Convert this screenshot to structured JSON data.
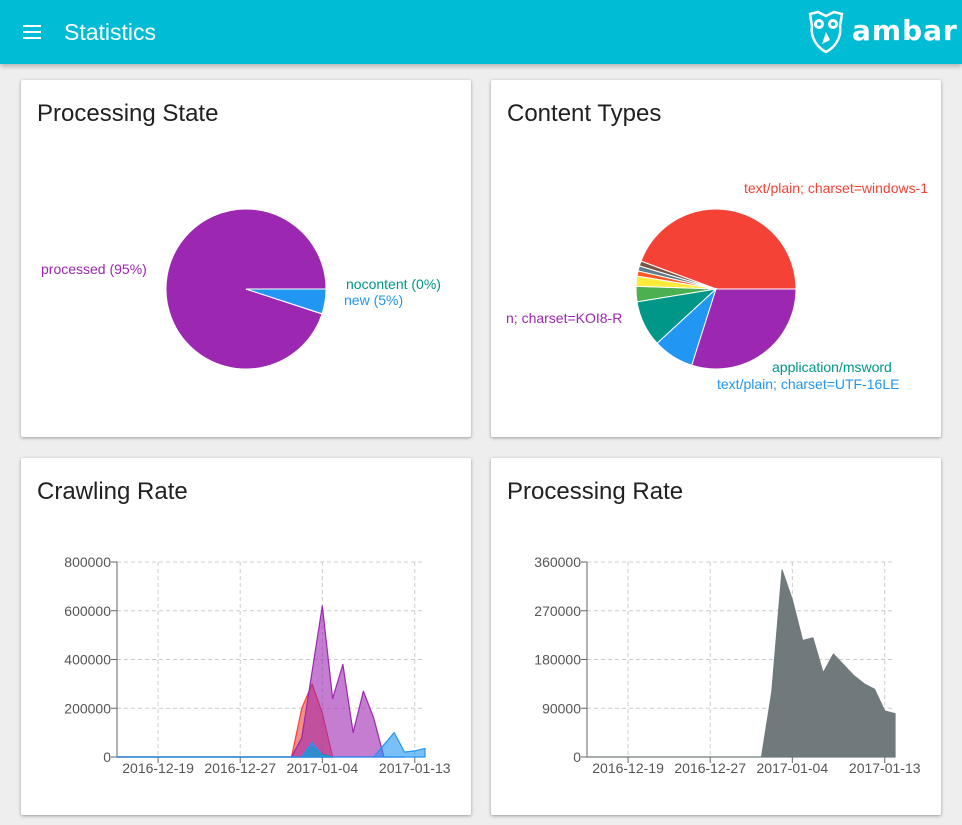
{
  "app": {
    "title": "Statistics",
    "logo_text": "ambar"
  },
  "colors": {
    "appbar": "#00bcd4",
    "purple": "#9c27b0",
    "blue": "#2196f3",
    "teal": "#009688",
    "red": "#f44336",
    "green": "#4caf50",
    "yellow": "#ffeb3b",
    "gray": "#707a7c"
  },
  "cards": {
    "processing_state": {
      "title": "Processing State",
      "chart_data": {
        "type": "pie",
        "slices": [
          {
            "label": "processed (95%)",
            "value": 95,
            "color": "#9c27b0"
          },
          {
            "label": "nocontent (0%)",
            "value": 0.05,
            "color": "#009688"
          },
          {
            "label": "new (5%)",
            "value": 5,
            "color": "#2196f3"
          }
        ]
      }
    },
    "content_types": {
      "title": "Content Types",
      "chart_data": {
        "type": "pie",
        "slices": [
          {
            "label": "text/plain; charset=windows-1",
            "value": 43,
            "color": "#f44336"
          },
          {
            "label": "",
            "value": 1,
            "color": "#795548"
          },
          {
            "label": "",
            "value": 1,
            "color": "#607d8b"
          },
          {
            "label": "",
            "value": 1,
            "color": "#ff5722"
          },
          {
            "label": "",
            "value": 2,
            "color": "#ffeb3b"
          },
          {
            "label": "",
            "value": 3,
            "color": "#4caf50"
          },
          {
            "label": "application/msword",
            "value": 9,
            "color": "#009688"
          },
          {
            "label": "text/plain; charset=UTF-16LE",
            "value": 8,
            "color": "#2196f3"
          },
          {
            "label": "n; charset=KOI8-R",
            "value": 29,
            "color": "#9c27b0"
          }
        ]
      }
    },
    "crawling_rate": {
      "title": "Crawling Rate",
      "chart_data": {
        "type": "area",
        "x_ticks": [
          "2016-12-19",
          "2016-12-27",
          "2017-01-04",
          "2017-01-13"
        ],
        "y_ticks": [
          "0",
          "200000",
          "400000",
          "600000",
          "800000"
        ],
        "ylim": [
          0,
          800000
        ],
        "series": [
          {
            "color": "#f44336",
            "x": [
              "2016-12-15",
              "2016-12-31",
              "2017-01-01",
              "2017-01-02",
              "2017-01-03",
              "2017-01-04",
              "2017-01-05"
            ],
            "values": [
              0,
              0,
              0,
              200000,
              300000,
              180000,
              0
            ]
          },
          {
            "color": "#9c27b0",
            "x": [
              "2016-12-15",
              "2017-01-01",
              "2017-01-02",
              "2017-01-03",
              "2017-01-04",
              "2017-01-05",
              "2017-01-06",
              "2017-01-07",
              "2017-01-08",
              "2017-01-09",
              "2017-01-10",
              "2017-01-11",
              "2017-01-12"
            ],
            "values": [
              0,
              0,
              80000,
              350000,
              620000,
              240000,
              380000,
              100000,
              270000,
              160000,
              0,
              0,
              0
            ]
          },
          {
            "color": "#009688",
            "x": [
              "2016-12-15",
              "2017-01-02",
              "2017-01-03",
              "2017-01-04",
              "2017-01-05"
            ],
            "values": [
              0,
              0,
              40000,
              10000,
              0
            ]
          },
          {
            "color": "#2196f3",
            "x": [
              "2016-12-15",
              "2017-01-02",
              "2017-01-03",
              "2017-01-04",
              "2017-01-05",
              "2017-01-06",
              "2017-01-07",
              "2017-01-08",
              "2017-01-09",
              "2017-01-10",
              "2017-01-11",
              "2017-01-12",
              "2017-01-13",
              "2017-01-14"
            ],
            "values": [
              0,
              0,
              60000,
              5000,
              0,
              0,
              0,
              0,
              0,
              50000,
              100000,
              20000,
              25000,
              35000
            ]
          }
        ]
      }
    },
    "processing_rate": {
      "title": "Processing Rate",
      "chart_data": {
        "type": "area",
        "x_ticks": [
          "2016-12-19",
          "2016-12-27",
          "2017-01-04",
          "2017-01-13"
        ],
        "y_ticks": [
          "0",
          "90000",
          "180000",
          "270000",
          "360000"
        ],
        "ylim": [
          0,
          360000
        ],
        "series": [
          {
            "color": "#707a7c",
            "x": [
              "2016-12-15",
              "2017-01-01",
              "2017-01-02",
              "2017-01-03",
              "2017-01-04",
              "2017-01-05",
              "2017-01-06",
              "2017-01-07",
              "2017-01-08",
              "2017-01-09",
              "2017-01-10",
              "2017-01-11",
              "2017-01-12",
              "2017-01-13",
              "2017-01-14"
            ],
            "values": [
              0,
              0,
              120000,
              345000,
              290000,
              215000,
              220000,
              155000,
              190000,
              170000,
              150000,
              135000,
              125000,
              85000,
              80000
            ]
          }
        ]
      }
    }
  }
}
